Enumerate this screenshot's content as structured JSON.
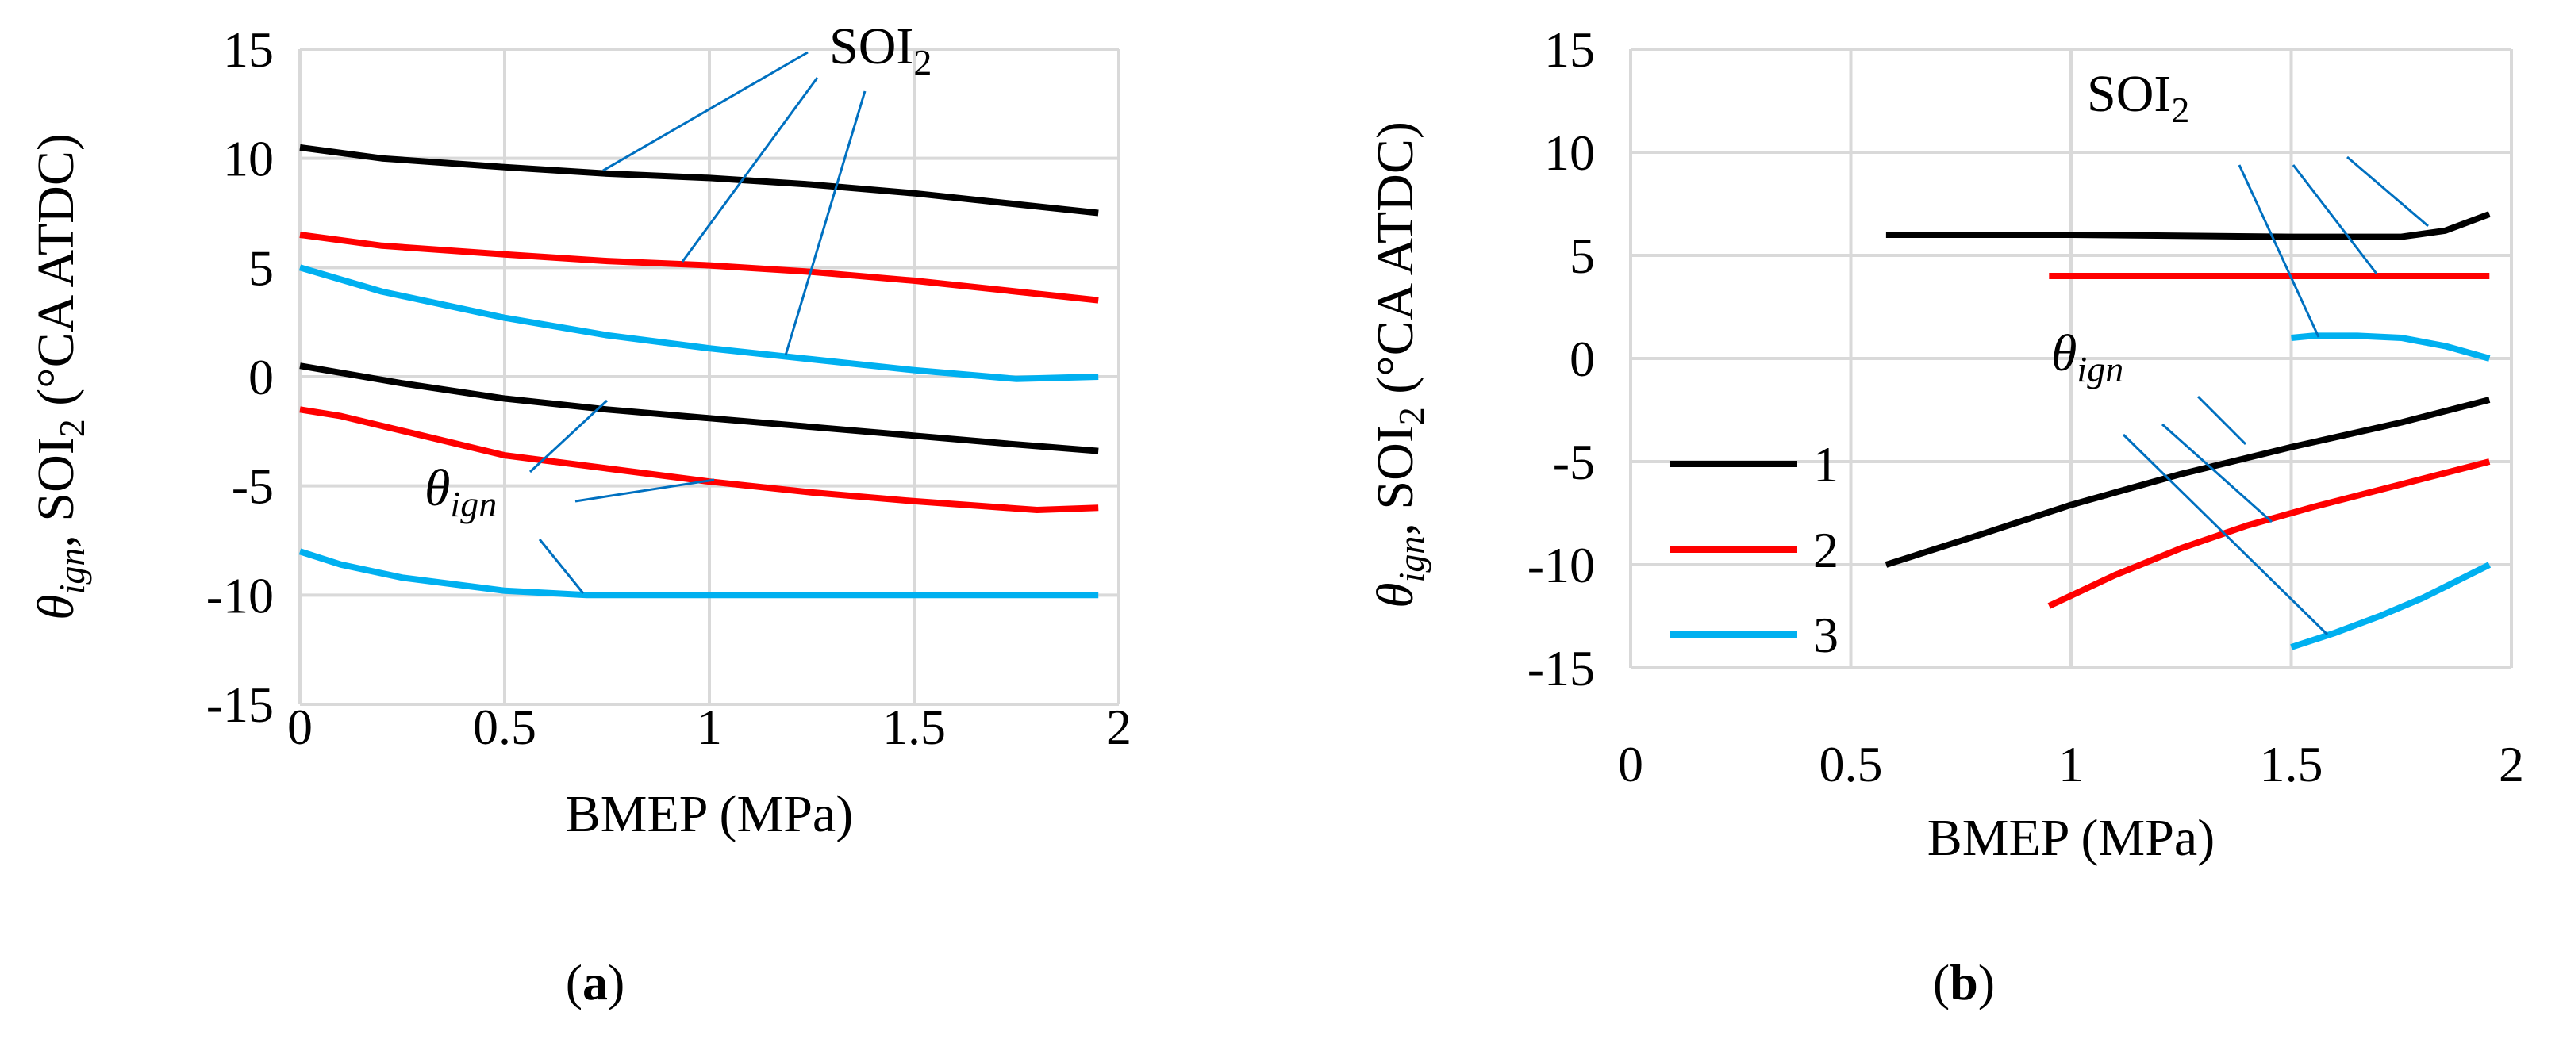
{
  "colors": {
    "series1": "#000000",
    "series2": "#ff0000",
    "series3": "#00b0f0",
    "grid": "#d9d9d9",
    "annot": "#0070c0"
  },
  "chart_data": [
    {
      "type": "line",
      "panel_label": "(a)",
      "panel_letter": "a",
      "xlabel": "BMEP (MPa)",
      "ylabel_parts": [
        "θ",
        "ign",
        ", SOI",
        "2",
        " (°CA ATDC)"
      ],
      "xlim": [
        0,
        2
      ],
      "ylim": [
        -15,
        15
      ],
      "xticks": [
        "0",
        "0.5",
        "1",
        "1.5",
        "2"
      ],
      "yticks": [
        "15",
        "10",
        "5",
        "0",
        "-5",
        "-10",
        "-15"
      ],
      "annotations": {
        "soi_main": "SOI",
        "soi_sub": "2",
        "theta_main": "θ",
        "theta_sub": "ign"
      },
      "series": [
        {
          "name": "1",
          "kind": "SOI2",
          "x": [
            0,
            0.2,
            0.5,
            0.75,
            1.0,
            1.25,
            1.5,
            1.75,
            1.95
          ],
          "y": [
            10.5,
            10.0,
            9.6,
            9.3,
            9.1,
            8.8,
            8.4,
            7.9,
            7.5
          ]
        },
        {
          "name": "2",
          "kind": "SOI2",
          "x": [
            0,
            0.2,
            0.5,
            0.75,
            1.0,
            1.25,
            1.5,
            1.75,
            1.95
          ],
          "y": [
            6.5,
            6.0,
            5.6,
            5.3,
            5.1,
            4.8,
            4.4,
            3.9,
            3.5
          ]
        },
        {
          "name": "3",
          "kind": "SOI2",
          "x": [
            0,
            0.2,
            0.5,
            0.75,
            1.0,
            1.25,
            1.5,
            1.75,
            1.95
          ],
          "y": [
            5.0,
            3.9,
            2.7,
            1.9,
            1.3,
            0.8,
            0.3,
            -0.1,
            0
          ]
        },
        {
          "name": "1",
          "kind": "theta_ign",
          "x": [
            0,
            0.25,
            0.5,
            0.75,
            1.0,
            1.25,
            1.5,
            1.75,
            1.95
          ],
          "y": [
            0.5,
            -0.3,
            -1.0,
            -1.5,
            -1.9,
            -2.3,
            -2.7,
            -3.1,
            -3.4
          ]
        },
        {
          "name": "2",
          "kind": "theta_ign",
          "x": [
            0,
            0.1,
            0.3,
            0.5,
            0.75,
            1.0,
            1.25,
            1.5,
            1.8,
            1.95
          ],
          "y": [
            -1.5,
            -1.8,
            -2.7,
            -3.6,
            -4.2,
            -4.8,
            -5.3,
            -5.7,
            -6.1,
            -6.0
          ]
        },
        {
          "name": "3",
          "kind": "theta_ign",
          "x": [
            0,
            0.1,
            0.25,
            0.5,
            0.7,
            1.0,
            1.25,
            1.5,
            1.75,
            1.95
          ],
          "y": [
            -8.0,
            -8.6,
            -9.2,
            -9.8,
            -10.0,
            -10.0,
            -10.0,
            -10.0,
            -10.0,
            -10.0
          ]
        }
      ]
    },
    {
      "type": "line",
      "panel_label": "(b)",
      "panel_letter": "b",
      "xlabel": "BMEP (MPa)",
      "ylabel_parts": [
        "θ",
        "ign",
        ", SOI",
        "2",
        " (°CA ATDC)"
      ],
      "xlim": [
        0,
        2
      ],
      "ylim": [
        -15,
        15
      ],
      "xticks": [
        "0",
        "0.5",
        "1",
        "1.5",
        "2"
      ],
      "yticks": [
        "15",
        "10",
        "5",
        "0",
        "-5",
        "-10",
        "-15"
      ],
      "annotations": {
        "soi_main": "SOI",
        "soi_sub": "2",
        "theta_main": "θ",
        "theta_sub": "ign"
      },
      "legend": {
        "entries": [
          "1",
          "2",
          "3"
        ],
        "position": "left"
      },
      "series": [
        {
          "name": "1",
          "kind": "SOI2",
          "x": [
            0.58,
            1.0,
            1.5,
            1.75,
            1.85,
            1.95
          ],
          "y": [
            6,
            6,
            5.9,
            5.9,
            6.2,
            7
          ]
        },
        {
          "name": "2",
          "kind": "SOI2",
          "x": [
            0.95,
            1.95
          ],
          "y": [
            4,
            4
          ]
        },
        {
          "name": "3",
          "kind": "SOI2",
          "x": [
            1.5,
            1.55,
            1.65,
            1.75,
            1.85,
            1.95
          ],
          "y": [
            1,
            1.1,
            1.1,
            1.0,
            0.6,
            0
          ]
        },
        {
          "name": "1",
          "kind": "theta_ign",
          "x": [
            0.58,
            0.8,
            1.0,
            1.25,
            1.5,
            1.75,
            1.95
          ],
          "y": [
            -10,
            -8.5,
            -7.1,
            -5.6,
            -4.3,
            -3.1,
            -2.0
          ]
        },
        {
          "name": "2",
          "kind": "theta_ign",
          "x": [
            0.95,
            1.1,
            1.25,
            1.4,
            1.55,
            1.75,
            1.95
          ],
          "y": [
            -12,
            -10.5,
            -9.2,
            -8.1,
            -7.2,
            -6.1,
            -5.0
          ]
        },
        {
          "name": "3",
          "kind": "theta_ign",
          "x": [
            1.5,
            1.6,
            1.7,
            1.8,
            1.95
          ],
          "y": [
            -14,
            -13.3,
            -12.5,
            -11.6,
            -10
          ]
        }
      ]
    }
  ]
}
